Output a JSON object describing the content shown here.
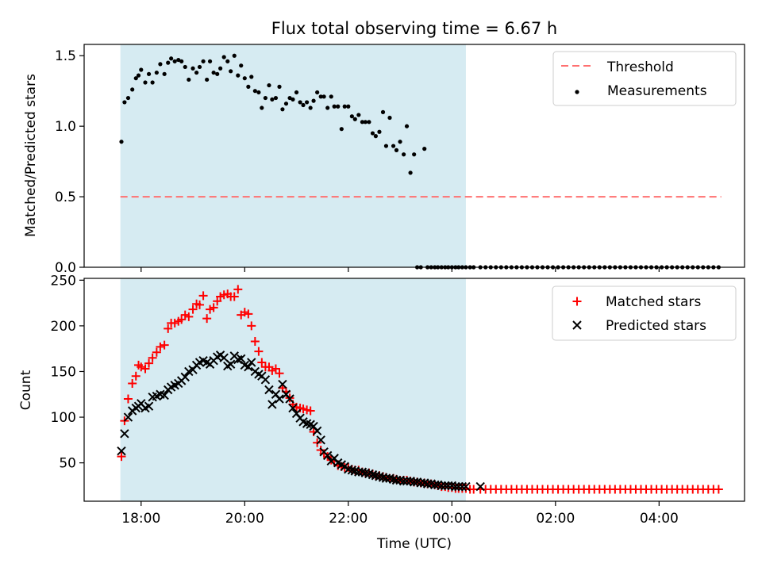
{
  "chart_data": {
    "title": "Flux total observing time = 6.67 h",
    "xlabel": "Time (UTC)",
    "x_ticks": [
      {
        "hours": 18,
        "label": "18:00"
      },
      {
        "hours": 20,
        "label": "20:00"
      },
      {
        "hours": 22,
        "label": "22:00"
      },
      {
        "hours": 24,
        "label": "00:00"
      },
      {
        "hours": 26,
        "label": "02:00"
      },
      {
        "hours": 28,
        "label": "04:00"
      }
    ],
    "observing_window": {
      "start_hours": 17.6,
      "end_hours": 24.27,
      "color": "#add8e6"
    },
    "panels": [
      {
        "type": "scatter",
        "ylabel": "Matched/Predicted stars",
        "ylim": [
          0,
          1.58
        ],
        "y_ticks": [
          {
            "v": 0,
            "label": "0.0"
          },
          {
            "v": 0.5,
            "label": "0.5"
          },
          {
            "v": 1.0,
            "label": "1.0"
          },
          {
            "v": 1.5,
            "label": "1.5"
          }
        ],
        "legend_position": "top-right",
        "threshold": {
          "name": "Threshold",
          "value": 0.5,
          "x_start": 17.6,
          "x_end": 29.2,
          "color": "#ff7070"
        },
        "series": [
          {
            "name": "Measurements",
            "marker": "dot",
            "color": "#000000",
            "x": [
              17.62,
              17.68,
              17.75,
              17.83,
              17.9,
              17.95,
              18.0,
              18.08,
              18.15,
              18.22,
              18.3,
              18.37,
              18.45,
              18.52,
              18.58,
              18.65,
              18.72,
              18.78,
              18.85,
              18.92,
              19.0,
              19.07,
              19.13,
              19.2,
              19.27,
              19.33,
              19.4,
              19.47,
              19.53,
              19.6,
              19.67,
              19.73,
              19.8,
              19.87,
              19.93,
              20.0,
              20.07,
              20.13,
              20.2,
              20.27,
              20.33,
              20.4,
              20.47,
              20.53,
              20.6,
              20.67,
              20.73,
              20.8,
              20.87,
              20.93,
              21.0,
              21.07,
              21.13,
              21.2,
              21.27,
              21.33,
              21.4,
              21.47,
              21.53,
              21.6,
              21.67,
              21.73,
              21.8,
              21.87,
              21.93,
              22.0,
              22.07,
              22.13,
              22.2,
              22.27,
              22.33,
              22.4,
              22.47,
              22.53,
              22.6,
              22.67,
              22.73,
              22.8,
              22.87,
              22.93,
              23.0,
              23.07,
              23.13,
              23.2,
              23.27,
              23.33,
              23.4,
              23.47,
              23.53,
              23.6,
              23.67,
              23.73,
              23.8,
              23.87,
              23.93,
              24.0,
              24.07,
              24.13,
              24.2,
              24.27,
              24.35,
              24.42,
              24.55,
              24.65,
              24.75,
              24.85,
              24.95,
              25.05,
              25.15,
              25.25,
              25.35,
              25.45,
              25.55,
              25.65,
              25.75,
              25.85,
              25.95,
              26.05,
              26.15,
              26.25,
              26.35,
              26.45,
              26.55,
              26.65,
              26.75,
              26.85,
              26.95,
              27.05,
              27.15,
              27.25,
              27.35,
              27.45,
              27.55,
              27.65,
              27.75,
              27.85,
              27.95,
              28.05,
              28.15,
              28.25,
              28.35,
              28.45,
              28.55,
              28.65,
              28.75,
              28.85,
              28.95,
              29.05,
              29.15
            ],
            "y": [
              0.89,
              1.17,
              1.2,
              1.26,
              1.34,
              1.36,
              1.4,
              1.31,
              1.37,
              1.31,
              1.38,
              1.44,
              1.37,
              1.45,
              1.48,
              1.46,
              1.47,
              1.46,
              1.42,
              1.33,
              1.41,
              1.38,
              1.42,
              1.46,
              1.33,
              1.46,
              1.38,
              1.37,
              1.41,
              1.49,
              1.46,
              1.39,
              1.5,
              1.36,
              1.43,
              1.34,
              1.28,
              1.35,
              1.25,
              1.24,
              1.13,
              1.2,
              1.29,
              1.19,
              1.2,
              1.28,
              1.12,
              1.16,
              1.2,
              1.19,
              1.24,
              1.17,
              1.15,
              1.17,
              1.13,
              1.18,
              1.24,
              1.21,
              1.21,
              1.13,
              1.21,
              1.14,
              1.14,
              0.98,
              1.14,
              1.14,
              1.07,
              1.05,
              1.08,
              1.03,
              1.03,
              1.03,
              0.95,
              0.93,
              0.96,
              1.1,
              0.86,
              1.06,
              0.86,
              0.83,
              0.89,
              0.8,
              1.0,
              0.67,
              0.8,
              0.0,
              0.0,
              0.84,
              0.0,
              0.0,
              0.0,
              0.0,
              0.0,
              0.0,
              0.0,
              0.0,
              0.0,
              0.0,
              0.0,
              0.0,
              0.0,
              0.0,
              0.0,
              0.0,
              0.0,
              0.0,
              0.0,
              0.0,
              0.0,
              0.0,
              0.0,
              0.0,
              0.0,
              0.0,
              0.0,
              0.0,
              0.0,
              0.0,
              0.0,
              0.0,
              0.0,
              0.0,
              0.0,
              0.0,
              0.0,
              0.0,
              0.0,
              0.0,
              0.0,
              0.0,
              0.0,
              0.0,
              0.0,
              0.0,
              0.0,
              0.0,
              0.0,
              0.0,
              0.0,
              0.0,
              0.0,
              0.0,
              0.0,
              0.0,
              0.0,
              0.0,
              0.0,
              0.0,
              0.0
            ]
          }
        ]
      },
      {
        "type": "scatter",
        "ylabel": "Count",
        "ylim": [
          8,
          252
        ],
        "y_ticks": [
          {
            "v": 50,
            "label": "50"
          },
          {
            "v": 100,
            "label": "100"
          },
          {
            "v": 150,
            "label": "150"
          },
          {
            "v": 200,
            "label": "200"
          },
          {
            "v": 250,
            "label": "250"
          }
        ],
        "legend_position": "top-right",
        "series": [
          {
            "name": "Matched stars",
            "marker": "plus",
            "color": "#ff0000",
            "x": [
              17.62,
              17.68,
              17.75,
              17.83,
              17.9,
              17.95,
              18.0,
              18.08,
              18.15,
              18.22,
              18.3,
              18.37,
              18.45,
              18.52,
              18.58,
              18.65,
              18.72,
              18.78,
              18.85,
              18.92,
              19.0,
              19.07,
              19.13,
              19.2,
              19.27,
              19.33,
              19.4,
              19.47,
              19.53,
              19.6,
              19.67,
              19.73,
              19.8,
              19.87,
              19.93,
              20.0,
              20.07,
              20.13,
              20.2,
              20.27,
              20.33,
              20.4,
              20.47,
              20.53,
              20.6,
              20.67,
              20.73,
              20.8,
              20.87,
              20.93,
              21.0,
              21.07,
              21.13,
              21.2,
              21.27,
              21.33,
              21.4,
              21.47,
              21.53,
              21.6,
              21.67,
              21.73,
              21.8,
              21.87,
              21.93,
              22.0,
              22.07,
              22.13,
              22.2,
              22.27,
              22.33,
              22.4,
              22.47,
              22.53,
              22.6,
              22.67,
              22.73,
              22.8,
              22.87,
              22.93,
              23.0,
              23.07,
              23.13,
              23.2,
              23.27,
              23.33,
              23.4,
              23.47,
              23.53,
              23.6,
              23.67,
              23.73,
              23.8,
              23.87,
              23.93,
              24.0,
              24.07,
              24.13,
              24.2,
              24.27,
              24.35,
              24.42,
              24.55,
              24.65,
              24.75,
              24.85,
              24.95,
              25.05,
              25.15,
              25.25,
              25.35,
              25.45,
              25.55,
              25.65,
              25.75,
              25.85,
              25.95,
              26.05,
              26.15,
              26.25,
              26.35,
              26.45,
              26.55,
              26.65,
              26.75,
              26.85,
              26.95,
              27.05,
              27.15,
              27.25,
              27.35,
              27.45,
              27.55,
              27.65,
              27.75,
              27.85,
              27.95,
              28.05,
              28.15,
              28.25,
              28.35,
              28.45,
              28.55,
              28.65,
              28.75,
              28.85,
              28.95,
              29.05,
              29.15
            ],
            "y": [
              57,
              96,
              120,
              137,
              145,
              157,
              155,
              153,
              159,
              165,
              171,
              177,
              179,
              197,
              203,
              203,
              205,
              207,
              212,
              210,
              218,
              224,
              223,
              233,
              208,
              218,
              220,
              227,
              232,
              234,
              235,
              232,
              232,
              240,
              212,
              215,
              213,
              200,
              183,
              172,
              160,
              155,
              155,
              151,
              153,
              148,
              132,
              128,
              121,
              114,
              111,
              110,
              109,
              108,
              107,
              84,
              72,
              64,
              60,
              57,
              53,
              52,
              47,
              46,
              45,
              45,
              43,
              42,
              42,
              40,
              39,
              39,
              38,
              36,
              36,
              35,
              34,
              33,
              33,
              32,
              31,
              31,
              31,
              30,
              29,
              29,
              28,
              28,
              27,
              27,
              26,
              25,
              24,
              24,
              23,
              23,
              22,
              22,
              22,
              22,
              21,
              21,
              21,
              21,
              21,
              21,
              21,
              21,
              21,
              21,
              21,
              21,
              21,
              21,
              21,
              21,
              21,
              21,
              21,
              21,
              21,
              21,
              21,
              21,
              21,
              21,
              21,
              21,
              21,
              21,
              21,
              21,
              21,
              21,
              21,
              21,
              21,
              21,
              21,
              21,
              21,
              21,
              21,
              21,
              21,
              21,
              21,
              21,
              21
            ]
          },
          {
            "name": "Predicted stars",
            "marker": "x",
            "color": "#000000",
            "x": [
              17.62,
              17.68,
              17.75,
              17.83,
              17.9,
              17.95,
              18.0,
              18.08,
              18.15,
              18.22,
              18.3,
              18.37,
              18.45,
              18.52,
              18.58,
              18.65,
              18.72,
              18.78,
              18.85,
              18.92,
              19.0,
              19.07,
              19.13,
              19.2,
              19.27,
              19.33,
              19.4,
              19.47,
              19.53,
              19.6,
              19.67,
              19.73,
              19.8,
              19.87,
              19.93,
              20.0,
              20.07,
              20.13,
              20.2,
              20.27,
              20.33,
              20.4,
              20.47,
              20.53,
              20.6,
              20.67,
              20.73,
              20.8,
              20.87,
              20.93,
              21.0,
              21.07,
              21.13,
              21.2,
              21.27,
              21.33,
              21.4,
              21.47,
              21.53,
              21.6,
              21.67,
              21.73,
              21.8,
              21.87,
              21.93,
              22.0,
              22.07,
              22.13,
              22.2,
              22.27,
              22.33,
              22.4,
              22.47,
              22.53,
              22.6,
              22.67,
              22.73,
              22.8,
              22.87,
              22.93,
              23.0,
              23.07,
              23.13,
              23.2,
              23.27,
              23.33,
              23.4,
              23.47,
              23.53,
              23.6,
              23.67,
              23.73,
              23.8,
              23.87,
              23.93,
              24.0,
              24.07,
              24.13,
              24.2,
              24.27,
              24.55
            ],
            "y": [
              63,
              82,
              100,
              107,
              110,
              112,
              115,
              110,
              112,
              122,
              123,
              125,
              124,
              130,
              133,
              135,
              137,
              140,
              144,
              150,
              152,
              157,
              160,
              162,
              160,
              158,
              162,
              166,
              168,
              165,
              156,
              158,
              167,
              163,
              164,
              157,
              155,
              160,
              150,
              147,
              145,
              141,
              130,
              114,
              125,
              120,
              136,
              125,
              120,
              110,
              104,
              99,
              95,
              93,
              92,
              90,
              85,
              75,
              62,
              58,
              52,
              55,
              50,
              48,
              46,
              43,
              42,
              41,
              40,
              40,
              39,
              38,
              37,
              36,
              35,
              34,
              33,
              33,
              32,
              31,
              31,
              30,
              30,
              30,
              29,
              29,
              28,
              28,
              27,
              27,
              26,
              26,
              25,
              25,
              25,
              25,
              24,
              24,
              24,
              24,
              24
            ]
          }
        ]
      }
    ]
  }
}
